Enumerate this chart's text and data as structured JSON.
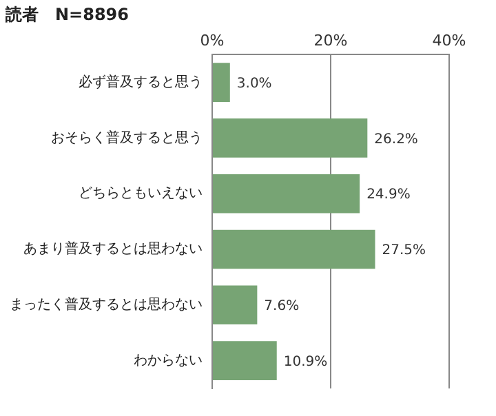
{
  "chart_data": {
    "type": "bar",
    "orientation": "horizontal",
    "title": "読者　N=8896",
    "categories": [
      "必ず普及すると思う",
      "おそらく普及すると思う",
      "どちらともいえない",
      "あまり普及するとは思わない",
      "まったく普及するとは思わない",
      "わからない"
    ],
    "values": [
      3.0,
      26.2,
      24.9,
      27.5,
      7.6,
      10.9
    ],
    "value_labels": [
      "3.0%",
      "26.2%",
      "24.9%",
      "27.5%",
      "7.6%",
      "10.9%"
    ],
    "color": "#77a474",
    "xlim": [
      0,
      40
    ],
    "xticks": [
      {
        "value": 0,
        "label": "0%"
      },
      {
        "value": 20,
        "label": "20%"
      },
      {
        "value": 40,
        "label": "40%"
      }
    ],
    "grid": "x",
    "legend": false
  }
}
